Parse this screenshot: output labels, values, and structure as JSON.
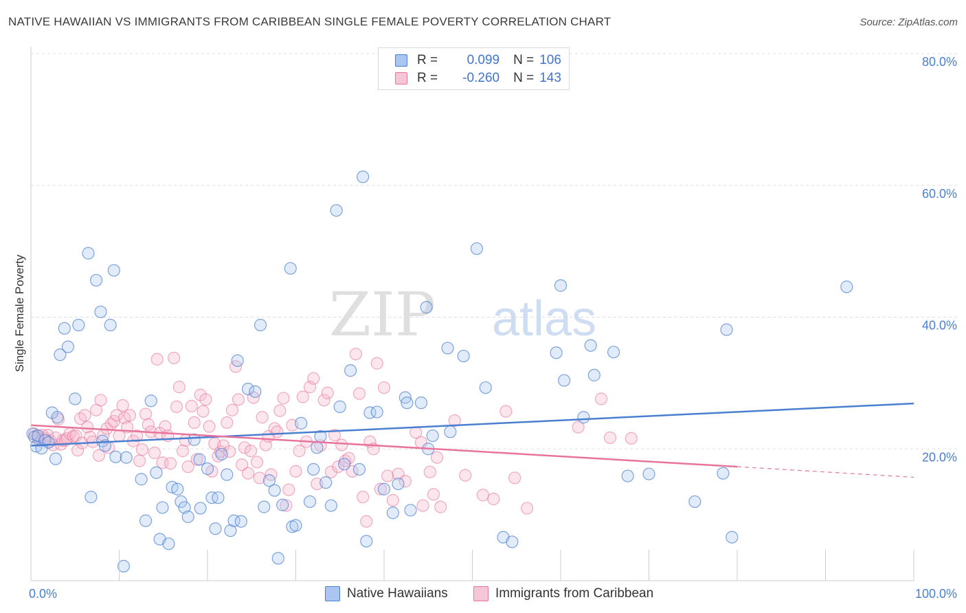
{
  "header": {
    "title": "NATIVE HAWAIIAN VS IMMIGRANTS FROM CARIBBEAN SINGLE FEMALE POVERTY CORRELATION CHART",
    "source": "Source: ZipAtlas.com"
  },
  "legend": {
    "series1": {
      "r_label": "R =",
      "r_value": "0.099",
      "n_label": "N =",
      "n_value": "106"
    },
    "series2": {
      "r_label": "R =",
      "r_value": "-0.260",
      "n_label": "N =",
      "n_value": "143"
    }
  },
  "watermark": {
    "zip": "ZIP",
    "atlas": "atlas"
  },
  "colors": {
    "blue": "#4a7fd0",
    "blue_fill": "#aac6f0",
    "pink": "#e8749c",
    "pink_fill": "#f5b8cc",
    "grid": "#dddddd"
  },
  "chart_data": {
    "type": "scatter",
    "title": "NATIVE HAWAIIAN VS IMMIGRANTS FROM CARIBBEAN SINGLE FEMALE POVERTY CORRELATION CHART",
    "xlabel": "",
    "ylabel": "Single Female Poverty",
    "xlim": [
      0,
      100
    ],
    "ylim": [
      0,
      80
    ],
    "x_tick_labels": [
      "0.0%",
      "100.0%"
    ],
    "y_tick_labels": [
      "20.0%",
      "40.0%",
      "60.0%",
      "80.0%"
    ],
    "y_ticks": [
      20,
      40,
      60,
      80
    ],
    "legend_position": "top-center",
    "grid": true,
    "series": [
      {
        "name": "Native Hawaiians",
        "r": 0.099,
        "n": 106,
        "trend": {
          "x": [
            0,
            100
          ],
          "y": [
            20.5,
            26.9
          ]
        },
        "points": [
          [
            0.2,
            22.3
          ],
          [
            0.4,
            21.8
          ],
          [
            0.6,
            20.4
          ],
          [
            0.8,
            22.0
          ],
          [
            1.2,
            20.1
          ],
          [
            1.6,
            21.3
          ],
          [
            2.0,
            21.0
          ],
          [
            2.4,
            25.5
          ],
          [
            2.8,
            18.5
          ],
          [
            3.0,
            24.8
          ],
          [
            3.3,
            34.3
          ],
          [
            3.8,
            38.3
          ],
          [
            4.2,
            35.5
          ],
          [
            5.0,
            27.6
          ],
          [
            5.4,
            38.8
          ],
          [
            6.5,
            49.7
          ],
          [
            6.8,
            12.7
          ],
          [
            7.4,
            45.6
          ],
          [
            7.9,
            40.8
          ],
          [
            8.1,
            21.2
          ],
          [
            8.4,
            20.5
          ],
          [
            9.0,
            38.8
          ],
          [
            9.4,
            47.1
          ],
          [
            9.6,
            18.8
          ],
          [
            10.5,
            2.2
          ],
          [
            10.8,
            18.7
          ],
          [
            12.5,
            15.4
          ],
          [
            13.0,
            9.1
          ],
          [
            13.6,
            27.3
          ],
          [
            14.2,
            16.4
          ],
          [
            14.6,
            6.3
          ],
          [
            14.9,
            11.1
          ],
          [
            15.6,
            5.6
          ],
          [
            16.0,
            14.2
          ],
          [
            16.6,
            13.9
          ],
          [
            17.0,
            12.0
          ],
          [
            17.4,
            11.1
          ],
          [
            17.8,
            9.7
          ],
          [
            18.5,
            21.4
          ],
          [
            19.1,
            18.4
          ],
          [
            19.2,
            11.0
          ],
          [
            20.0,
            17.0
          ],
          [
            20.5,
            12.6
          ],
          [
            20.9,
            7.9
          ],
          [
            21.2,
            12.6
          ],
          [
            21.6,
            19.2
          ],
          [
            22.2,
            16.1
          ],
          [
            22.6,
            7.6
          ],
          [
            23.0,
            9.1
          ],
          [
            23.4,
            33.4
          ],
          [
            23.8,
            9.0
          ],
          [
            24.6,
            29.1
          ],
          [
            25.4,
            28.7
          ],
          [
            26.0,
            38.8
          ],
          [
            26.4,
            11.2
          ],
          [
            27.0,
            15.2
          ],
          [
            27.6,
            13.7
          ],
          [
            28.0,
            3.4
          ],
          [
            28.5,
            11.5
          ],
          [
            29.4,
            47.4
          ],
          [
            29.6,
            8.2
          ],
          [
            30.0,
            8.4
          ],
          [
            30.6,
            23.9
          ],
          [
            31.6,
            12.0
          ],
          [
            32.0,
            16.9
          ],
          [
            32.4,
            20.2
          ],
          [
            32.8,
            21.9
          ],
          [
            33.4,
            14.9
          ],
          [
            34.0,
            11.4
          ],
          [
            34.6,
            56.2
          ],
          [
            35.0,
            26.4
          ],
          [
            35.5,
            17.7
          ],
          [
            36.2,
            31.9
          ],
          [
            37.2,
            16.9
          ],
          [
            37.6,
            61.3
          ],
          [
            38.0,
            6.0
          ],
          [
            38.4,
            25.5
          ],
          [
            39.2,
            25.6
          ],
          [
            40.0,
            13.9
          ],
          [
            41.0,
            10.3
          ],
          [
            41.6,
            14.7
          ],
          [
            42.4,
            27.8
          ],
          [
            42.6,
            27.0
          ],
          [
            43.0,
            10.7
          ],
          [
            44.2,
            27.0
          ],
          [
            44.8,
            41.5
          ],
          [
            45.0,
            20.0
          ],
          [
            45.5,
            22.0
          ],
          [
            47.2,
            35.3
          ],
          [
            47.5,
            22.6
          ],
          [
            49.0,
            34.1
          ],
          [
            50.5,
            50.4
          ],
          [
            51.5,
            29.3
          ],
          [
            53.5,
            6.6
          ],
          [
            54.5,
            5.9
          ],
          [
            59.5,
            34.6
          ],
          [
            60.0,
            44.8
          ],
          [
            60.4,
            30.4
          ],
          [
            62.6,
            24.8
          ],
          [
            63.4,
            35.7
          ],
          [
            63.8,
            31.2
          ],
          [
            66.0,
            34.7
          ],
          [
            67.6,
            15.9
          ],
          [
            70.0,
            16.2
          ],
          [
            75.2,
            12.0
          ],
          [
            78.4,
            16.3
          ],
          [
            78.8,
            38.1
          ],
          [
            79.4,
            6.6
          ],
          [
            92.4,
            44.6
          ]
        ]
      },
      {
        "name": "Immigrants from Caribbean",
        "r": -0.26,
        "n": 143,
        "trend": {
          "x": [
            0,
            80
          ],
          "y": [
            23.6,
            17.3
          ]
        },
        "trend_dashed": {
          "x": [
            80,
            100
          ],
          "y": [
            17.3,
            15.7
          ]
        },
        "points": [
          [
            0.4,
            22.3
          ],
          [
            0.6,
            22.0
          ],
          [
            0.8,
            21.6
          ],
          [
            1.0,
            21.2
          ],
          [
            1.3,
            22.1
          ],
          [
            1.6,
            21.6
          ],
          [
            1.9,
            22.1
          ],
          [
            2.2,
            21.2
          ],
          [
            2.5,
            20.6
          ],
          [
            2.8,
            21.7
          ],
          [
            3.1,
            24.5
          ],
          [
            3.4,
            20.7
          ],
          [
            3.6,
            21.3
          ],
          [
            3.9,
            21.3
          ],
          [
            4.1,
            21.6
          ],
          [
            4.4,
            22.3
          ],
          [
            4.8,
            21.9
          ],
          [
            5.1,
            22.0
          ],
          [
            5.3,
            19.8
          ],
          [
            5.6,
            24.6
          ],
          [
            5.8,
            20.9
          ],
          [
            6.1,
            25.1
          ],
          [
            6.4,
            23.3
          ],
          [
            6.7,
            21.8
          ],
          [
            7.0,
            21.1
          ],
          [
            7.4,
            25.9
          ],
          [
            7.7,
            19.0
          ],
          [
            7.9,
            27.4
          ],
          [
            8.2,
            22.1
          ],
          [
            8.6,
            23.1
          ],
          [
            8.8,
            20.2
          ],
          [
            9.1,
            23.8
          ],
          [
            9.4,
            24.2
          ],
          [
            9.7,
            25.1
          ],
          [
            10.0,
            22.0
          ],
          [
            10.4,
            26.6
          ],
          [
            10.6,
            24.7
          ],
          [
            10.9,
            23.3
          ],
          [
            11.2,
            25.1
          ],
          [
            11.6,
            21.2
          ],
          [
            12.0,
            22.0
          ],
          [
            12.3,
            18.2
          ],
          [
            12.6,
            19.9
          ],
          [
            13.0,
            25.3
          ],
          [
            13.3,
            23.7
          ],
          [
            13.6,
            22.6
          ],
          [
            14.0,
            19.4
          ],
          [
            14.3,
            33.6
          ],
          [
            14.6,
            22.4
          ],
          [
            14.9,
            17.9
          ],
          [
            15.2,
            23.4
          ],
          [
            15.5,
            22.0
          ],
          [
            15.8,
            17.8
          ],
          [
            16.2,
            33.8
          ],
          [
            16.5,
            26.4
          ],
          [
            16.8,
            29.4
          ],
          [
            17.2,
            19.7
          ],
          [
            17.5,
            21.3
          ],
          [
            17.8,
            17.3
          ],
          [
            18.2,
            26.5
          ],
          [
            18.5,
            24.0
          ],
          [
            18.8,
            18.4
          ],
          [
            19.2,
            28.2
          ],
          [
            19.5,
            25.7
          ],
          [
            19.8,
            27.5
          ],
          [
            20.2,
            23.4
          ],
          [
            20.5,
            16.6
          ],
          [
            20.8,
            20.8
          ],
          [
            21.2,
            18.9
          ],
          [
            21.5,
            19.6
          ],
          [
            21.8,
            20.5
          ],
          [
            22.2,
            24.0
          ],
          [
            22.5,
            19.6
          ],
          [
            22.8,
            25.9
          ],
          [
            23.2,
            32.5
          ],
          [
            23.5,
            27.5
          ],
          [
            23.9,
            17.6
          ],
          [
            24.2,
            20.2
          ],
          [
            24.6,
            16.3
          ],
          [
            24.9,
            19.7
          ],
          [
            25.2,
            27.8
          ],
          [
            25.6,
            18.0
          ],
          [
            25.9,
            15.6
          ],
          [
            26.2,
            24.8
          ],
          [
            26.6,
            20.6
          ],
          [
            26.9,
            21.9
          ],
          [
            27.2,
            16.1
          ],
          [
            27.6,
            23.1
          ],
          [
            27.9,
            22.6
          ],
          [
            28.2,
            25.8
          ],
          [
            28.6,
            27.7
          ],
          [
            28.9,
            11.4
          ],
          [
            29.2,
            13.8
          ],
          [
            29.6,
            23.6
          ],
          [
            30.0,
            16.6
          ],
          [
            30.4,
            19.7
          ],
          [
            30.8,
            27.9
          ],
          [
            31.2,
            21.1
          ],
          [
            31.6,
            29.4
          ],
          [
            32.0,
            30.7
          ],
          [
            32.4,
            14.7
          ],
          [
            32.8,
            20.5
          ],
          [
            33.2,
            27.4
          ],
          [
            33.6,
            28.5
          ],
          [
            34.0,
            16.5
          ],
          [
            34.4,
            22.1
          ],
          [
            34.8,
            17.3
          ],
          [
            35.2,
            20.6
          ],
          [
            35.6,
            18.2
          ],
          [
            36.0,
            18.6
          ],
          [
            36.4,
            16.6
          ],
          [
            36.8,
            34.4
          ],
          [
            37.2,
            28.4
          ],
          [
            37.6,
            12.7
          ],
          [
            38.0,
            9.0
          ],
          [
            38.4,
            21.1
          ],
          [
            38.8,
            20.0
          ],
          [
            39.2,
            33.0
          ],
          [
            39.6,
            13.9
          ],
          [
            40.0,
            29.3
          ],
          [
            40.4,
            15.9
          ],
          [
            41.0,
            12.2
          ],
          [
            41.6,
            16.2
          ],
          [
            42.4,
            15.1
          ],
          [
            43.6,
            22.5
          ],
          [
            44.2,
            21.0
          ],
          [
            44.4,
            11.4
          ],
          [
            45.2,
            16.5
          ],
          [
            45.6,
            13.1
          ],
          [
            46.0,
            18.7
          ],
          [
            46.4,
            11.2
          ],
          [
            48.0,
            24.3
          ],
          [
            49.2,
            16.0
          ],
          [
            51.2,
            13.0
          ],
          [
            52.4,
            12.4
          ],
          [
            53.8,
            25.7
          ],
          [
            54.8,
            15.6
          ],
          [
            56.2,
            11.0
          ],
          [
            62.0,
            23.3
          ],
          [
            64.6,
            27.6
          ],
          [
            65.6,
            21.7
          ],
          [
            68.0,
            21.6
          ]
        ]
      }
    ]
  },
  "bottom_legend": {
    "item1": "Native Hawaiians",
    "item2": "Immigrants from Caribbean"
  }
}
